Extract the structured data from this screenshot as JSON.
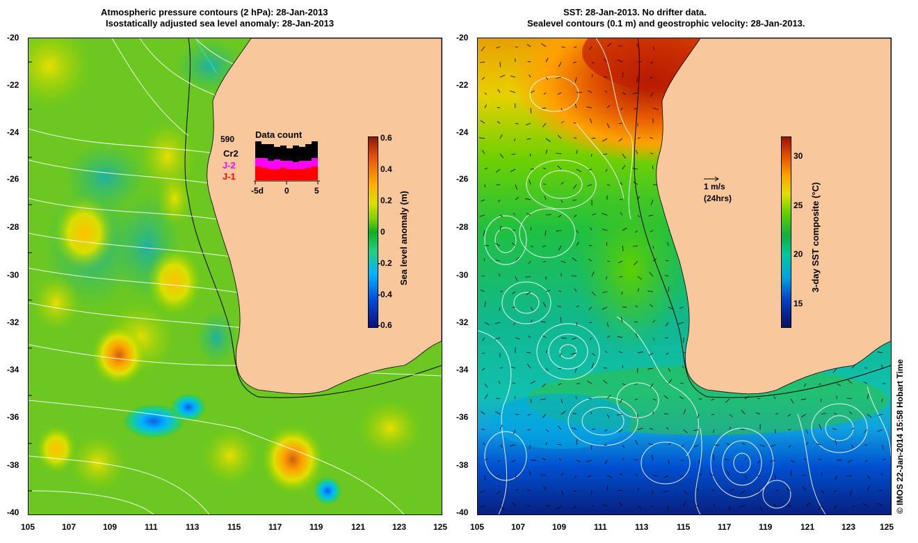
{
  "left_panel": {
    "title_line1": "Atmospheric pressure contours (2 hPa): 28-Jan-2013",
    "title_line2": "Isostatically adjusted sea level anomaly: 28-Jan-2013",
    "colorbar": {
      "label": "Sea level anomaly (m)",
      "ticks": [
        "0.6",
        "0.4",
        "0.2",
        "0",
        "-0.2",
        "-0.4",
        "-0.6"
      ]
    },
    "data_count": {
      "title": "Data count",
      "max_value": "590",
      "series": [
        "Cr2",
        "J-2",
        "J-1"
      ],
      "series_colors": [
        "#000000",
        "#ff00ff",
        "#ff0000"
      ],
      "x_labels": [
        "-5d",
        "0",
        "5"
      ]
    }
  },
  "right_panel": {
    "title_line1": "SST: 28-Jan-2013. No drifter data.",
    "title_line2": "Sealevel contours (0.1 m) and geostrophic velocity: 28-Jan-2013.",
    "colorbar": {
      "label": "3-day SST composite (°C)",
      "ticks": [
        "30",
        "25",
        "20",
        "15"
      ]
    },
    "velocity_scale": {
      "speed": "1 m/s",
      "period": "(24hrs)"
    }
  },
  "axes": {
    "lat_ticks": [
      "-20",
      "-22",
      "-24",
      "-26",
      "-28",
      "-30",
      "-32",
      "-34",
      "-36",
      "-38",
      "-40"
    ],
    "lon_ticks": [
      "105",
      "107",
      "109",
      "111",
      "113",
      "115",
      "117",
      "119",
      "121",
      "123",
      "125"
    ]
  },
  "credit": "© IMOS 22-Jan-2014 15:58 Hobart Time",
  "colors": {
    "land": "#f9c79c",
    "sla_colormap": [
      "#0a0f7a",
      "#0050e0",
      "#00b4ff",
      "#20d080",
      "#10b020",
      "#7ed000",
      "#d8e000",
      "#ffb000",
      "#e05010",
      "#8c1a00"
    ],
    "sst_colormap": [
      "#081060",
      "#0040c0",
      "#00a0e0",
      "#00c8a0",
      "#10b040",
      "#60d000",
      "#e0e000",
      "#ffa000",
      "#e05000",
      "#a01000"
    ]
  }
}
